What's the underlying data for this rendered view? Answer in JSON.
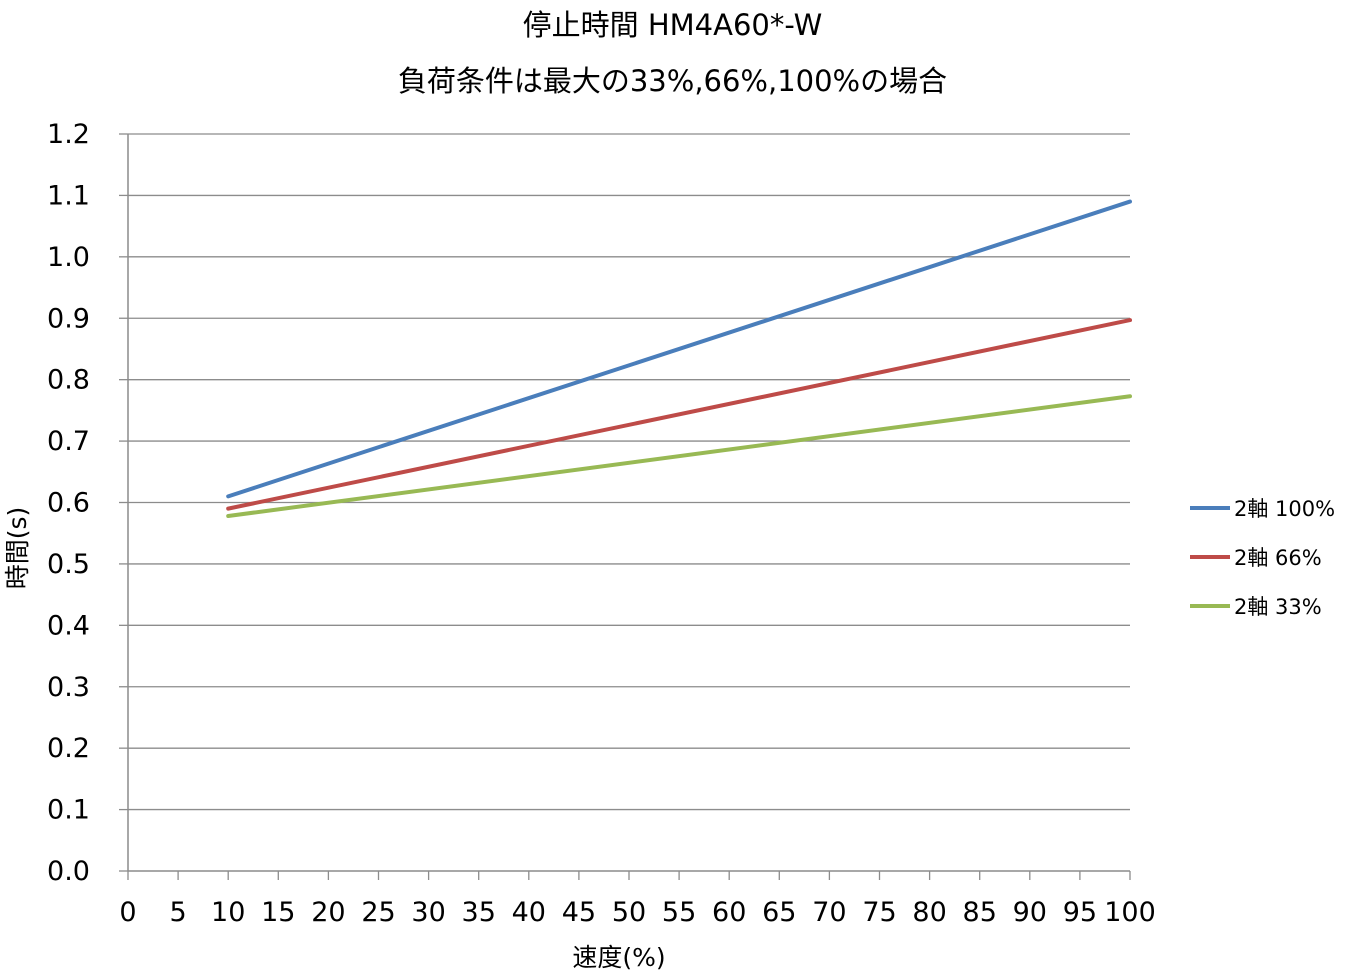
{
  "chart_data": {
    "type": "line",
    "title": "停止時間 HM4A60*-W",
    "subtitle": "負荷条件は最大の33%,66%,100%の場合",
    "xlabel": "速度(%)",
    "ylabel": "時間(s)",
    "xlim": [
      0,
      100
    ],
    "ylim": [
      0.0,
      1.2
    ],
    "x_ticks": [
      "0",
      "5",
      "10",
      "15",
      "20",
      "25",
      "30",
      "35",
      "40",
      "45",
      "50",
      "55",
      "60",
      "65",
      "70",
      "75",
      "80",
      "85",
      "90",
      "95",
      "100"
    ],
    "y_ticks": [
      "0.0",
      "0.1",
      "0.2",
      "0.3",
      "0.4",
      "0.5",
      "0.6",
      "0.7",
      "0.8",
      "0.9",
      "1.0",
      "1.1",
      "1.2"
    ],
    "grid": true,
    "legend_position": "right",
    "series": [
      {
        "name": "2軸 100%",
        "color": "#4A7EBB",
        "x": [
          10,
          100
        ],
        "y": [
          0.61,
          1.09
        ]
      },
      {
        "name": "2軸 66%",
        "color": "#BE4B48",
        "x": [
          10,
          100
        ],
        "y": [
          0.59,
          0.897
        ]
      },
      {
        "name": "2軸 33%",
        "color": "#98B954",
        "x": [
          10,
          100
        ],
        "y": [
          0.578,
          0.773
        ]
      }
    ]
  }
}
